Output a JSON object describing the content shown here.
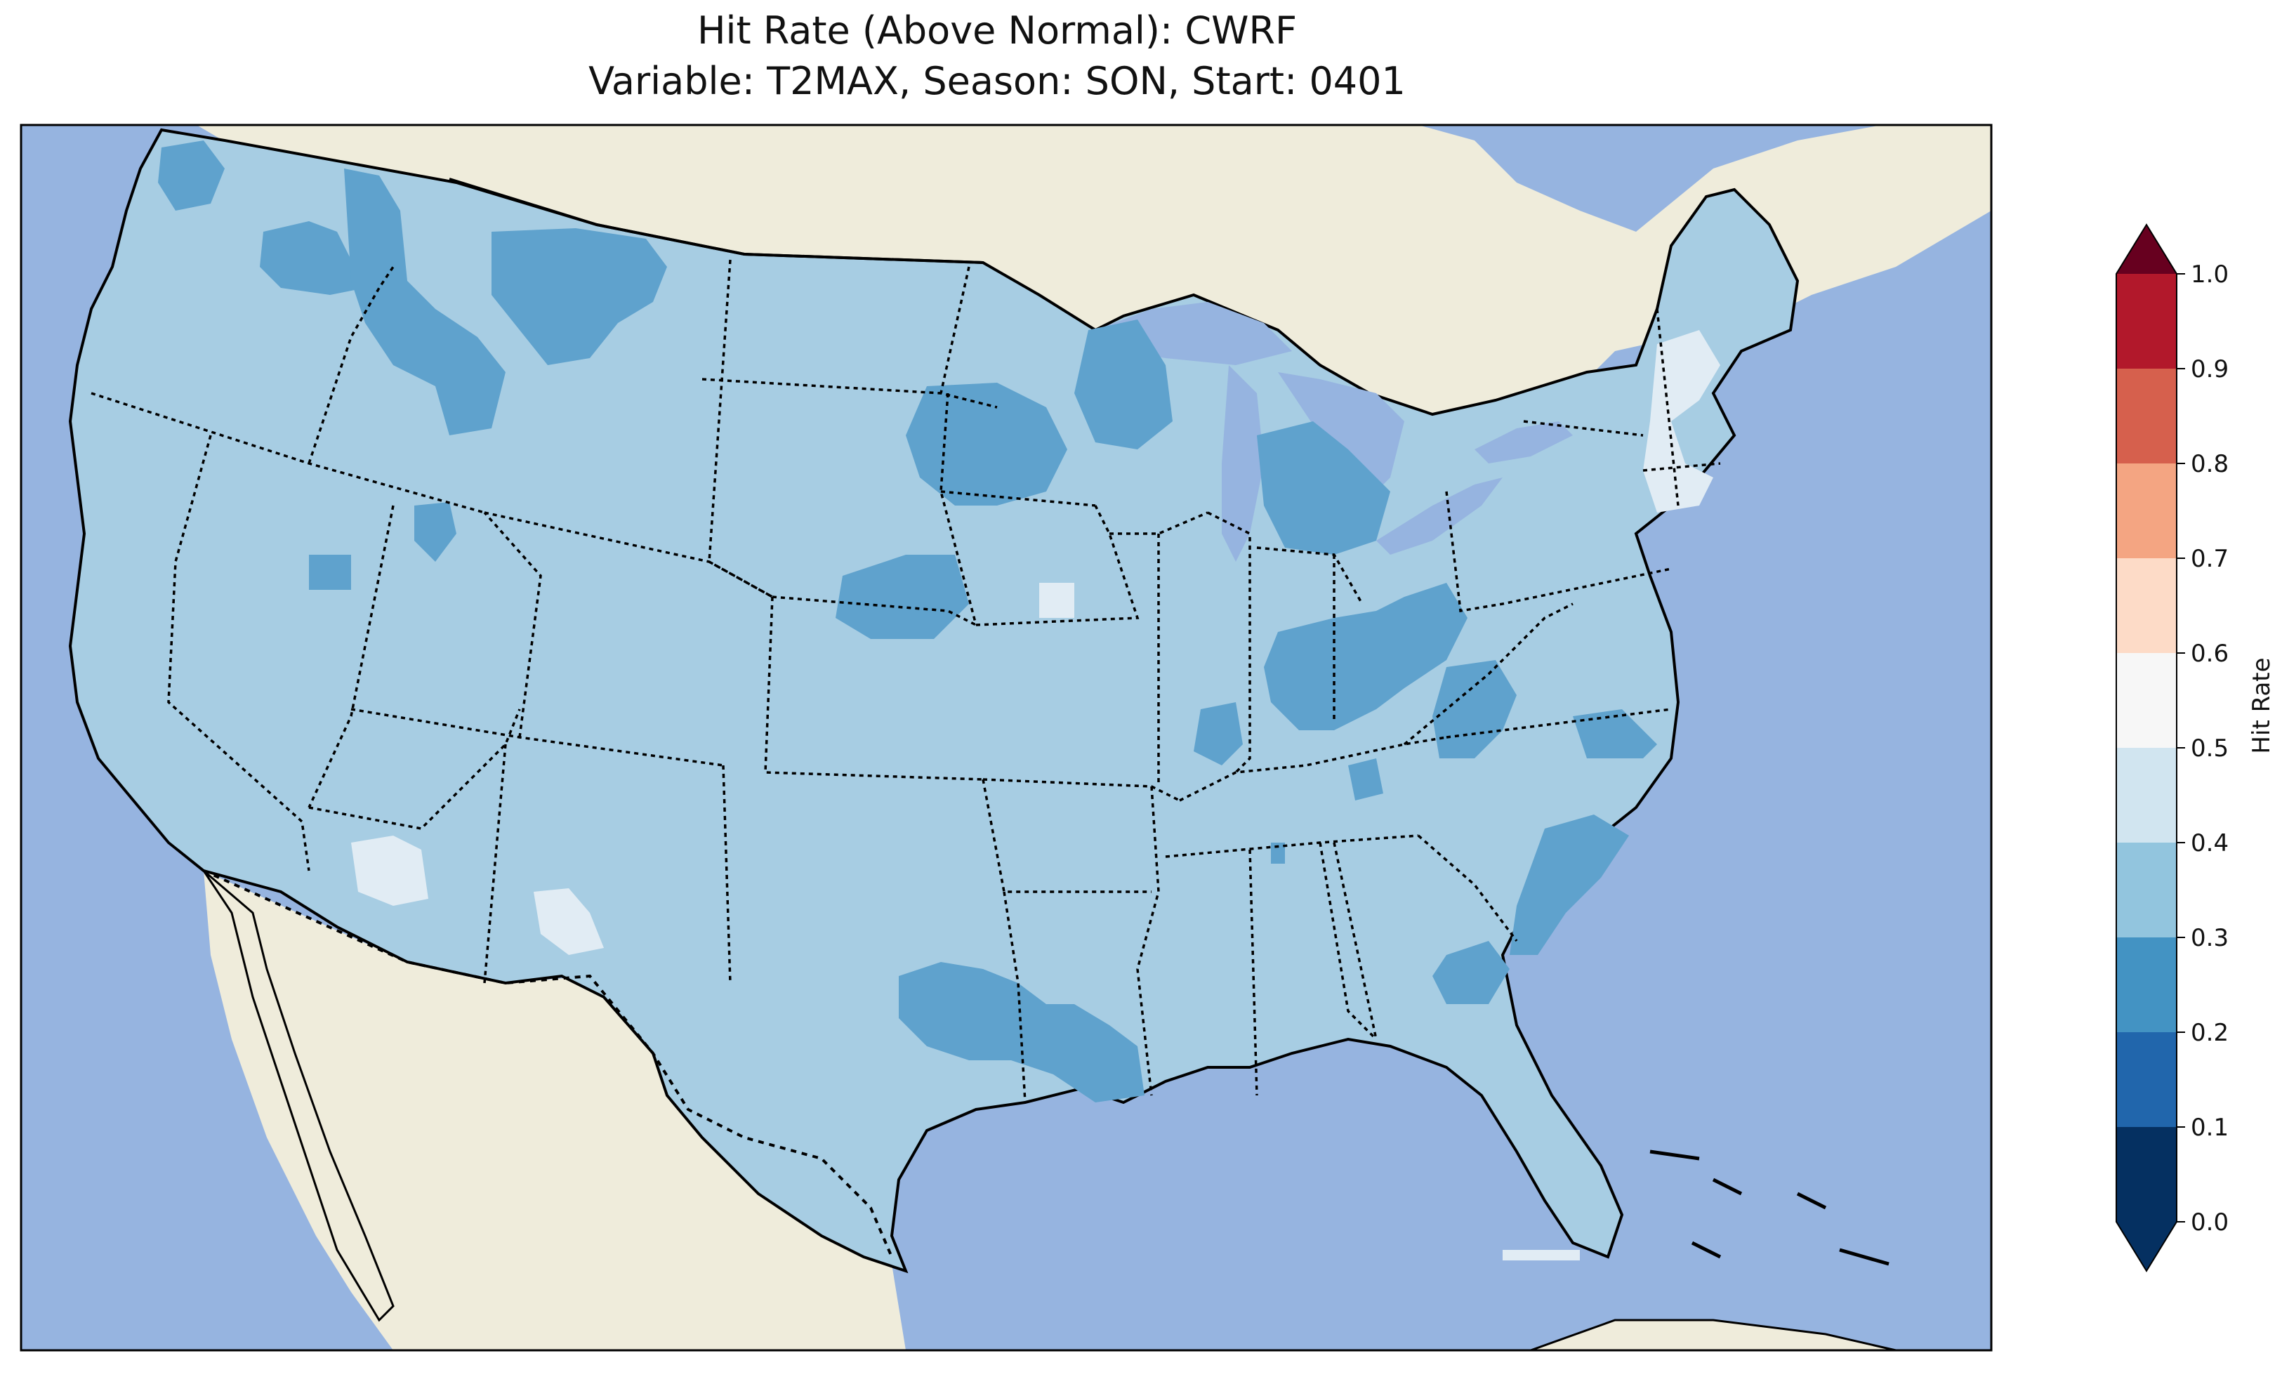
{
  "figure": {
    "title_line1": "Hit Rate (Above Normal): CWRF",
    "title_line2": "Variable: T2MAX, Season: SON, Start: 0401"
  },
  "map": {
    "projection": "Lambert Conformal (CONUS)",
    "ocean_color": "#96b4e0",
    "land_color": "#efecdb",
    "field_base_color": "#a7cde3",
    "coastline_color": "#000000",
    "border_style": "dotted",
    "regions": [
      {
        "level": "0.2-0.3",
        "label": "Pacific Northwest coast"
      },
      {
        "level": "0.2-0.3",
        "label": "Northern Rockies / Montana"
      },
      {
        "level": "0.2-0.3",
        "label": "South Dakota / Minnesota"
      },
      {
        "level": "0.2-0.3",
        "label": "Nebraska"
      },
      {
        "level": "0.2-0.3",
        "label": "Wisconsin / Michigan"
      },
      {
        "level": "0.2-0.3",
        "label": "Ohio Valley"
      },
      {
        "level": "0.2-0.3",
        "label": "Texas / Louisiana"
      },
      {
        "level": "0.2-0.3",
        "label": "Southeast coast"
      },
      {
        "level": "0.4-0.5",
        "label": "Southern Arizona"
      },
      {
        "level": "0.4-0.5",
        "label": "Southern New Mexico"
      },
      {
        "level": "0.4-0.5",
        "label": "New England"
      },
      {
        "level": "0.4-0.5",
        "label": "Iowa"
      }
    ]
  },
  "colorbar": {
    "label": "Hit Rate",
    "ticks": [
      "0.0",
      "0.1",
      "0.2",
      "0.3",
      "0.4",
      "0.5",
      "0.6",
      "0.7",
      "0.8",
      "0.9",
      "1.0"
    ],
    "levels": [
      0.0,
      0.1,
      0.2,
      0.3,
      0.4,
      0.5,
      0.6,
      0.7,
      0.8,
      0.9,
      1.0
    ],
    "colors": [
      "#053061",
      "#2166ac",
      "#4393c3",
      "#92c5de",
      "#d1e5f0",
      "#f7f7f7",
      "#fddbc7",
      "#f4a582",
      "#d6604d",
      "#b2182b"
    ],
    "under_color": "#053061",
    "over_color": "#67001f",
    "extend": "both"
  }
}
